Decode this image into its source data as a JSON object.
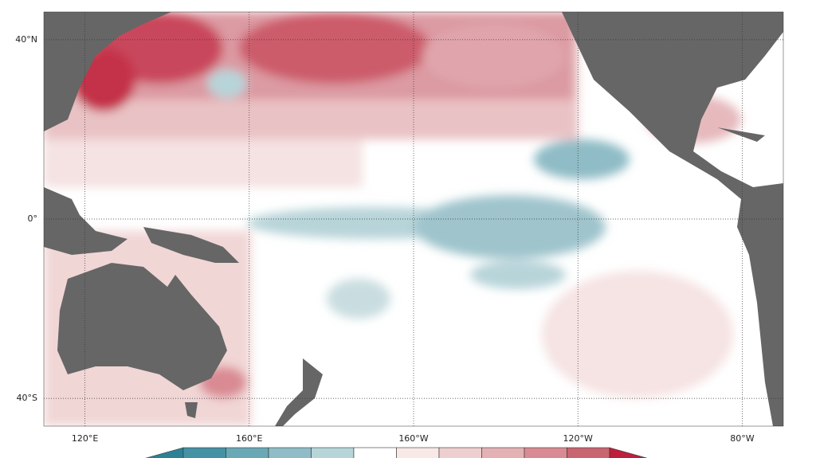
{
  "chart_data": {
    "type": "map",
    "xlim": [
      110,
      290
    ],
    "ylim": [
      -46.2,
      46.2
    ],
    "xticks": [
      {
        "value": 120,
        "label": "120°E"
      },
      {
        "value": 160,
        "label": "160°E"
      },
      {
        "value": 200,
        "label": "160°W"
      },
      {
        "value": 240,
        "label": "120°W"
      },
      {
        "value": 280,
        "label": "80°W"
      }
    ],
    "yticks": [
      {
        "value": 40,
        "label": "40°N"
      },
      {
        "value": 0,
        "label": "0°"
      },
      {
        "value": -40,
        "label": "40°S"
      }
    ],
    "grid": true,
    "colorbar": {
      "colors": [
        "#2c8197",
        "#4692a5",
        "#6aa8b6",
        "#8fbcc6",
        "#b7d4d9",
        "#ffffff",
        "#f8e9e7",
        "#eecfd0",
        "#e3b1b4",
        "#d98b93",
        "#c96570",
        "#be1f3c"
      ]
    }
  }
}
